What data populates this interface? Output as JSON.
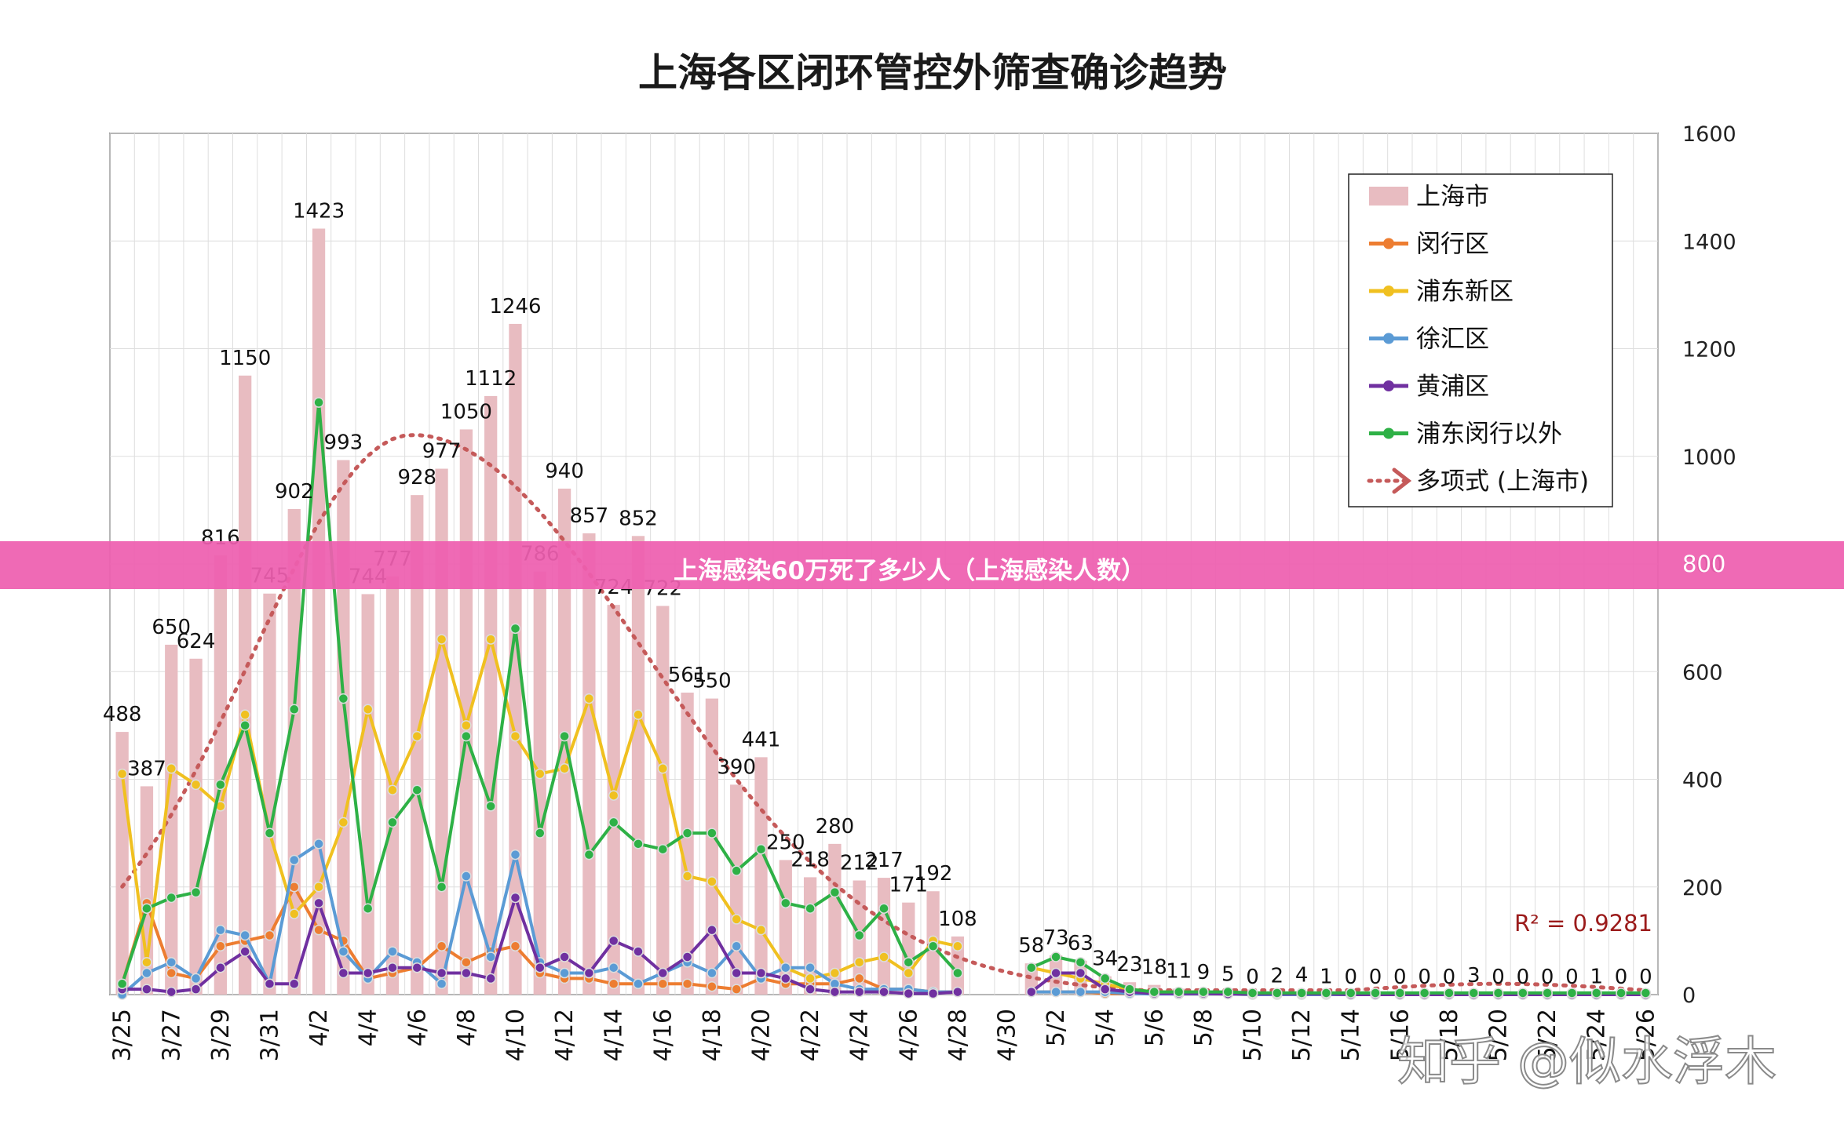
{
  "chart_data": {
    "type": "bar",
    "title": "上海各区闭环管控外筛查确诊趋势",
    "y_right_ticks": [
      "0",
      "200",
      "400",
      "600",
      "800",
      "1000",
      "1200",
      "1400",
      "1600"
    ],
    "ylim": [
      0,
      1600
    ],
    "grid": true,
    "legend_position": "top-right",
    "x_tick_labels": [
      "3/25",
      "3/27",
      "3/29",
      "3/31",
      "4/2",
      "4/4",
      "4/6",
      "4/8",
      "4/10",
      "4/12",
      "4/14",
      "4/16",
      "4/18",
      "4/20",
      "4/22",
      "4/24",
      "4/26",
      "4/28",
      "4/30",
      "5/2",
      "5/4",
      "5/6",
      "5/8",
      "5/10",
      "5/12",
      "5/14",
      "5/16",
      "5/18",
      "5/20",
      "5/22",
      "5/24",
      "5/26"
    ],
    "dates": [
      "3/25",
      "3/26",
      "3/27",
      "3/28",
      "3/29",
      "3/30",
      "3/31",
      "4/1",
      "4/2",
      "4/3",
      "4/4",
      "4/5",
      "4/6",
      "4/7",
      "4/8",
      "4/9",
      "4/10",
      "4/11",
      "4/12",
      "4/13",
      "4/14",
      "4/15",
      "4/16",
      "4/17",
      "4/18",
      "4/19",
      "4/20",
      "4/21",
      "4/22",
      "4/23",
      "4/24",
      "4/25",
      "4/26",
      "4/27",
      "4/28",
      "4/29",
      "4/30",
      "5/1",
      "5/2",
      "5/3",
      "5/4",
      "5/5",
      "5/6",
      "5/7",
      "5/8",
      "5/9",
      "5/10",
      "5/11",
      "5/12",
      "5/13",
      "5/14",
      "5/15",
      "5/16",
      "5/17",
      "5/18",
      "5/19",
      "5/20",
      "5/21",
      "5/22",
      "5/23",
      "5/24",
      "5/25",
      "5/26"
    ],
    "bar_series": {
      "name": "上海市",
      "color": "#e8bcc1",
      "values": [
        488,
        387,
        650,
        624,
        816,
        1150,
        745,
        902,
        1423,
        993,
        744,
        777,
        928,
        977,
        1050,
        1112,
        1246,
        786,
        940,
        857,
        724,
        852,
        722,
        561,
        550,
        390,
        441,
        250,
        218,
        280,
        212,
        217,
        171,
        192,
        108,
        null,
        null,
        58,
        73,
        63,
        34,
        23,
        18,
        11,
        9,
        5,
        0,
        2,
        4,
        1,
        0,
        0,
        0,
        0,
        0,
        3,
        0,
        0,
        0,
        0,
        1,
        0,
        0
      ],
      "labels": [
        "488",
        "387",
        "650",
        "624",
        "816",
        "1150",
        "745",
        "902",
        "1423",
        "993",
        "744",
        "777",
        "928",
        "977",
        "1050",
        "1112",
        "1246",
        "786",
        "940",
        "857",
        "724",
        "852",
        "722",
        "561",
        "550",
        "390",
        "441",
        "250",
        "218",
        "280",
        "212",
        "217",
        "171",
        "192",
        "108",
        "",
        "",
        "58",
        "73",
        "63",
        "34",
        "23",
        "18",
        "11",
        "9",
        "5",
        "0",
        "2",
        "4",
        "1",
        "0",
        "0",
        "0",
        "0",
        "0",
        "3",
        "0",
        "0",
        "0",
        "0",
        "1",
        "0",
        "0"
      ]
    },
    "line_series": [
      {
        "name": "闵行区",
        "color": "#ed7d31",
        "values": [
          20,
          170,
          40,
          30,
          90,
          100,
          110,
          200,
          120,
          100,
          30,
          40,
          50,
          90,
          60,
          80,
          90,
          40,
          30,
          30,
          20,
          20,
          20,
          20,
          15,
          10,
          30,
          20,
          20,
          20,
          30,
          10,
          10,
          5,
          5,
          null,
          null,
          5,
          5,
          5,
          2,
          2,
          2,
          1,
          1,
          1,
          0,
          0,
          0,
          0,
          0,
          0,
          0,
          0,
          0,
          0,
          0,
          0,
          0,
          0,
          0,
          0,
          0
        ]
      },
      {
        "name": "浦东新区",
        "color": "#f0c020",
        "values": [
          410,
          60,
          420,
          390,
          350,
          520,
          300,
          150,
          200,
          320,
          530,
          380,
          480,
          660,
          500,
          660,
          480,
          410,
          420,
          550,
          370,
          520,
          420,
          220,
          210,
          140,
          120,
          50,
          30,
          40,
          60,
          70,
          40,
          100,
          90,
          null,
          null,
          50,
          40,
          30,
          20,
          10,
          5,
          5,
          5,
          2,
          2,
          2,
          2,
          1,
          1,
          1,
          1,
          1,
          1,
          1,
          1,
          1,
          1,
          1,
          1,
          1,
          1
        ]
      },
      {
        "name": "徐汇区",
        "color": "#5b9bd5",
        "values": [
          0,
          40,
          60,
          30,
          120,
          110,
          20,
          250,
          280,
          80,
          30,
          80,
          60,
          20,
          220,
          70,
          260,
          60,
          40,
          40,
          50,
          20,
          40,
          60,
          40,
          90,
          30,
          50,
          50,
          20,
          10,
          10,
          10,
          5,
          5,
          null,
          null,
          5,
          5,
          5,
          5,
          2,
          1,
          1,
          1,
          1,
          0,
          0,
          0,
          0,
          0,
          0,
          0,
          0,
          0,
          0,
          0,
          0,
          0,
          0,
          0,
          0,
          0
        ]
      },
      {
        "name": "黄浦区",
        "color": "#7030a0",
        "values": [
          10,
          10,
          5,
          10,
          50,
          80,
          20,
          20,
          170,
          40,
          40,
          50,
          50,
          40,
          40,
          30,
          180,
          50,
          70,
          40,
          100,
          80,
          40,
          70,
          120,
          40,
          40,
          30,
          10,
          5,
          5,
          5,
          2,
          2,
          5,
          null,
          null,
          5,
          40,
          40,
          10,
          5,
          2,
          2,
          2,
          1,
          1,
          1,
          1,
          1,
          0,
          0,
          0,
          0,
          0,
          0,
          0,
          0,
          0,
          0,
          0,
          0,
          0
        ]
      },
      {
        "name": "浦东闵行以外",
        "color": "#2eb146",
        "values": [
          20,
          160,
          180,
          190,
          390,
          500,
          300,
          530,
          1100,
          550,
          160,
          320,
          380,
          200,
          480,
          350,
          680,
          300,
          480,
          260,
          320,
          280,
          270,
          300,
          300,
          230,
          270,
          170,
          160,
          190,
          110,
          160,
          60,
          90,
          40,
          null,
          null,
          50,
          70,
          60,
          30,
          10,
          5,
          5,
          5,
          5,
          3,
          3,
          3,
          3,
          3,
          3,
          3,
          3,
          3,
          3,
          3,
          3,
          3,
          3,
          3,
          3,
          3
        ]
      }
    ],
    "trendline": {
      "name": "多项式 (上海市)",
      "color": "#c55a5a",
      "r2_label": "R² = 0.9281"
    },
    "legend": [
      "上海市",
      "闵行区",
      "浦东新区",
      "徐汇区",
      "黄浦区",
      "浦东闵行以外",
      "多项式 (上海市)"
    ]
  },
  "banner": {
    "text": "上海感染60万死了多少人（上海感染人数）",
    "tick": "800"
  },
  "watermark": "知乎 @似水浮木"
}
